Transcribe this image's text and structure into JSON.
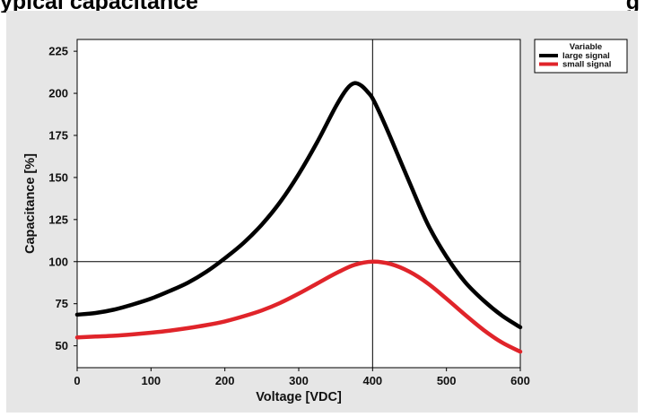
{
  "page": {
    "title_left": "ypical capacitance",
    "title_right": "g"
  },
  "chart_data": {
    "type": "line",
    "xlabel": "Voltage [VDC]",
    "ylabel": "Capacitance [%]",
    "xlim": [
      0,
      600
    ],
    "ylim": [
      37,
      232
    ],
    "x_ticks": [
      0,
      100,
      200,
      300,
      400,
      500,
      600
    ],
    "y_ticks": [
      50,
      75,
      100,
      125,
      150,
      175,
      200,
      225
    ],
    "reference_lines": {
      "x": 400,
      "y": 100
    },
    "grid": false,
    "legend": {
      "title": "Variable",
      "position": "right"
    },
    "series": [
      {
        "name": "large signal",
        "color": "#000000",
        "x": [
          0,
          25,
          50,
          75,
          100,
          125,
          150,
          175,
          200,
          225,
          250,
          275,
          300,
          325,
          350,
          365,
          375,
          385,
          395,
          400,
          410,
          425,
          450,
          475,
          500,
          525,
          550,
          575,
          600
        ],
        "y": [
          68.5,
          69.5,
          71.5,
          74.5,
          78,
          82.5,
          87.5,
          94,
          102,
          111,
          122,
          135.5,
          152,
          171,
          192,
          202.5,
          206,
          204.5,
          200,
          197,
          188,
          173,
          147,
          122,
          103,
          88,
          77,
          68,
          61
        ]
      },
      {
        "name": "small signal",
        "color": "#e0242a",
        "x": [
          0,
          25,
          50,
          75,
          100,
          125,
          150,
          175,
          200,
          225,
          250,
          275,
          300,
          325,
          350,
          375,
          400,
          425,
          450,
          475,
          500,
          525,
          550,
          575,
          600
        ],
        "y": [
          55,
          55.5,
          56,
          56.8,
          57.8,
          59,
          60.5,
          62.3,
          64.5,
          67.5,
          71,
          75.5,
          81,
          87,
          93,
          98,
          100,
          98.5,
          94,
          87,
          78,
          68.5,
          59.5,
          52,
          46.5
        ]
      }
    ]
  }
}
